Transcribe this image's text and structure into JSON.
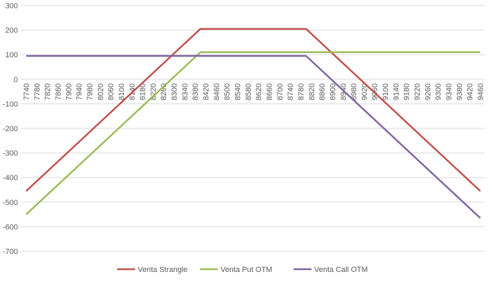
{
  "chart_data": {
    "type": "line",
    "title": "",
    "xlabel": "",
    "ylabel": "",
    "ylim": [
      -700,
      300
    ],
    "yticks": [
      300,
      200,
      100,
      0,
      -100,
      -200,
      -300,
      -400,
      -500,
      -600,
      -700
    ],
    "xlim": [
      7740,
      9460
    ],
    "xticks": [
      7740,
      7780,
      7820,
      7860,
      7900,
      7940,
      7980,
      8020,
      8060,
      8100,
      8140,
      8180,
      8220,
      8260,
      8300,
      8340,
      8380,
      8420,
      8460,
      8500,
      8540,
      8580,
      8620,
      8660,
      8700,
      8740,
      8780,
      8820,
      8860,
      8900,
      8940,
      8980,
      9020,
      9060,
      9100,
      9140,
      9180,
      9220,
      9260,
      9300,
      9340,
      9380,
      9420,
      9460
    ],
    "grid": "horizontal",
    "legend": "bottom",
    "x": [
      7740,
      8400,
      8800,
      9460
    ],
    "series": [
      {
        "name": "Venta Strangle",
        "color": "#C0504D",
        "values": [
          -455,
          205,
          205,
          -455
        ]
      },
      {
        "name": "Venta Put OTM",
        "color": "#9BBB59",
        "values": [
          -550,
          110,
          110,
          110
        ]
      },
      {
        "name": "Venta Call OTM",
        "color": "#8064A2",
        "values": [
          95,
          95,
          95,
          -565
        ]
      }
    ]
  }
}
